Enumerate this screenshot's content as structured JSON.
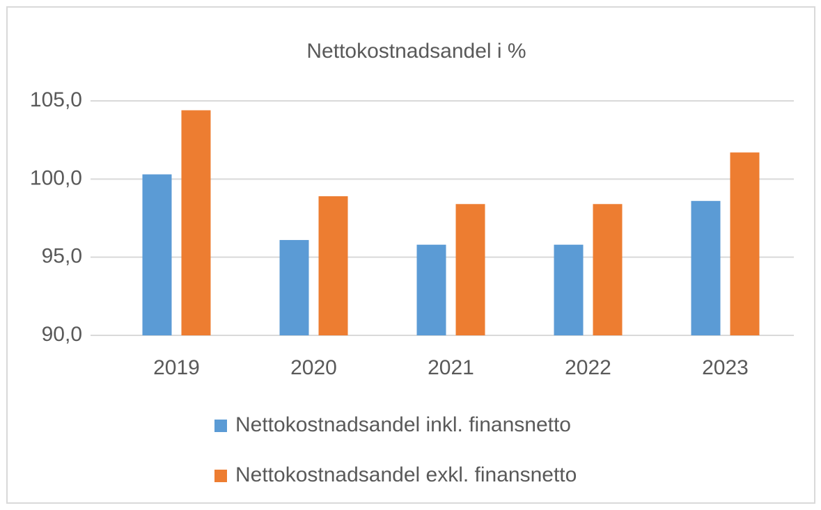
{
  "chart_data": {
    "type": "bar",
    "title": "Nettokostnadsandel i %",
    "categories": [
      "2019",
      "2020",
      "2021",
      "2022",
      "2023"
    ],
    "series": [
      {
        "name": "Nettokostnadsandel inkl. finansnetto",
        "color": "#5b9bd5",
        "values": [
          100.3,
          96.1,
          95.8,
          95.8,
          98.6
        ]
      },
      {
        "name": "Nettokostnadsandel exkl. finansnetto",
        "color": "#ed7d31",
        "values": [
          104.4,
          98.9,
          98.4,
          98.4,
          101.7
        ]
      }
    ],
    "ylim": [
      90,
      105
    ],
    "yticks": [
      {
        "value": 90,
        "label": "90,0"
      },
      {
        "value": 95,
        "label": "95,0"
      },
      {
        "value": 100,
        "label": "100,0"
      },
      {
        "value": 105,
        "label": "105,0"
      }
    ],
    "grid": true,
    "legend": "bottom"
  }
}
